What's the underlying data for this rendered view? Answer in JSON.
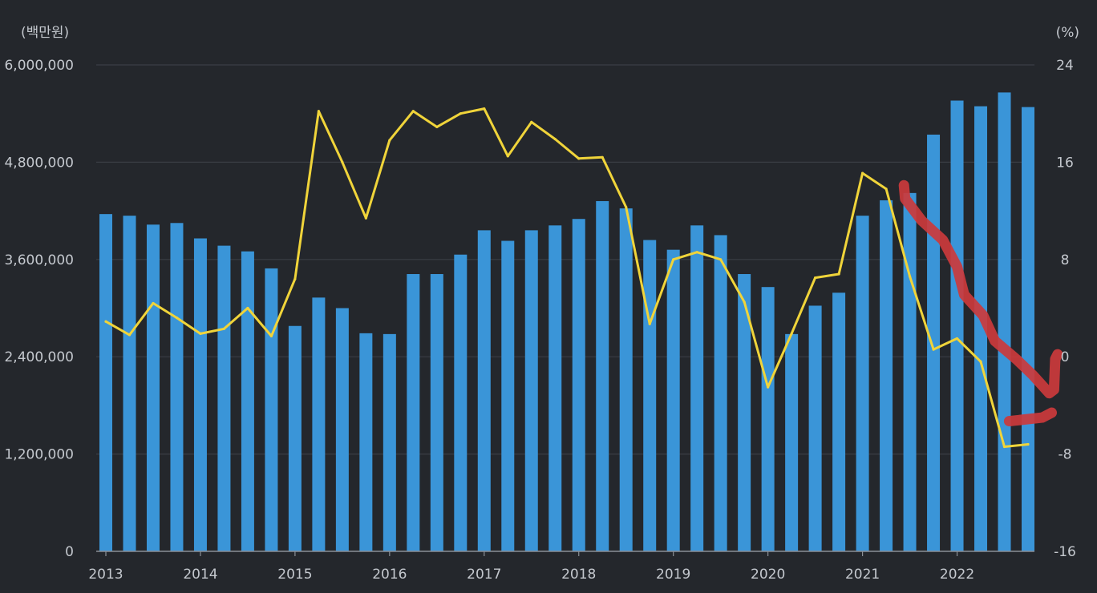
{
  "colors": {
    "background": "#24272c",
    "grid": "#3a3e45",
    "axis": "#8a8f96",
    "bar": "#3a95d8",
    "line": "#f0d43a",
    "annotation": "#cc3a3c",
    "text": "#c4c8ce"
  },
  "chart_data": {
    "type": "bar",
    "title": "",
    "left_axis": {
      "unit": "(백만원)",
      "range": [
        0,
        6000000
      ],
      "ticks": [
        "0",
        "1,200,000",
        "2,400,000",
        "3,600,000",
        "4,800,000",
        "6,000,000"
      ],
      "tick_values": [
        0,
        1200000,
        2400000,
        3600000,
        4800000,
        6000000
      ]
    },
    "right_axis": {
      "unit": "(%)",
      "range": [
        -16,
        24
      ],
      "ticks": [
        "-16",
        "-8",
        "0",
        "8",
        "16",
        "24"
      ],
      "tick_values": [
        -16,
        -8,
        0,
        8,
        16,
        24
      ]
    },
    "x_axis": {
      "labels": [
        "2013",
        "2014",
        "2015",
        "2016",
        "2017",
        "2018",
        "2019",
        "2020",
        "2021",
        "2022"
      ],
      "label_quarter_index": [
        0,
        4,
        8,
        12,
        16,
        20,
        24,
        28,
        32,
        36
      ]
    },
    "grid": true,
    "series": [
      {
        "name": "amount",
        "type": "bar",
        "axis": "left",
        "values": [
          4160000,
          4140000,
          4030000,
          4050000,
          3860000,
          3770000,
          3700000,
          3490000,
          2780000,
          3130000,
          3000000,
          2690000,
          2680000,
          3420000,
          3420000,
          3660000,
          3960000,
          3830000,
          3960000,
          4020000,
          4100000,
          4320000,
          4230000,
          3840000,
          3720000,
          4020000,
          3900000,
          3420000,
          3260000,
          2680000,
          3030000,
          3190000,
          4140000,
          4330000,
          4420000,
          5140000,
          5560000,
          5490000,
          5660000,
          5480000
        ]
      },
      {
        "name": "growth",
        "type": "line",
        "axis": "right",
        "values": [
          2.9,
          1.8,
          4.4,
          3.2,
          1.9,
          2.3,
          4.0,
          1.7,
          6.4,
          20.2,
          16.0,
          11.4,
          17.8,
          20.2,
          18.9,
          20.0,
          20.4,
          16.5,
          19.3,
          17.9,
          16.3,
          16.4,
          12.3,
          2.7,
          8.0,
          8.6,
          8.0,
          4.5,
          -2.5,
          1.9,
          6.5,
          6.8,
          15.1,
          13.8,
          6.6,
          0.6,
          1.5,
          -0.4,
          -7.4,
          -7.2
        ]
      }
    ],
    "annotation": {
      "shape": "hand-drawn red marker arrow",
      "path_right_axis_values": [
        [
          33.75,
          14.1
        ],
        [
          33.8,
          13.0
        ],
        [
          34.5,
          11.2
        ],
        [
          35.4,
          9.6
        ],
        [
          36.0,
          7.4
        ],
        [
          36.3,
          5.1
        ],
        [
          37.1,
          3.4
        ],
        [
          37.6,
          1.3
        ],
        [
          38.5,
          -0.2
        ],
        [
          39.2,
          -1.5
        ],
        [
          39.9,
          -3.0
        ],
        [
          40.1,
          -2.7
        ],
        [
          40.15,
          -0.2
        ],
        [
          40.25,
          0.2
        ]
      ],
      "arrow_barb_right_axis_values": [
        [
          38.2,
          -5.3
        ],
        [
          39.6,
          -5.0
        ],
        [
          40.0,
          -4.6
        ]
      ]
    }
  }
}
